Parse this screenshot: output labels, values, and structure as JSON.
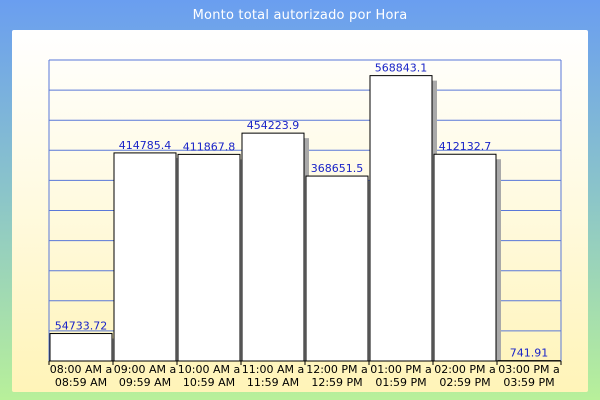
{
  "chart_data": {
    "type": "bar",
    "title": "Monto total autorizado por Hora",
    "categories": [
      [
        "08:00 AM a",
        "08:59 AM"
      ],
      [
        "09:00 AM a",
        "09:59 AM"
      ],
      [
        "10:00 AM a",
        "10:59 AM"
      ],
      [
        "11:00 AM a",
        "11:59 AM"
      ],
      [
        "12:00 PM a",
        "12:59 PM"
      ],
      [
        "01:00 PM a",
        "01:59 PM"
      ],
      [
        "02:00 PM a",
        "02:59 PM"
      ],
      [
        "03:00 PM a",
        "03:59 PM"
      ]
    ],
    "values": [
      54733.72,
      414785.4,
      411867.8,
      454223.9,
      368651.5,
      568843.1,
      412132.7,
      741.91
    ],
    "value_labels": [
      "54733.72",
      "414785.4",
      "411867.8",
      "454223.9",
      "368651.5",
      "568843.1",
      "412132.7",
      "741.91"
    ],
    "ylim": [
      0,
      600000
    ],
    "grid": true,
    "legend": "none",
    "colors": {
      "bar_fill": "#ffffff",
      "bar_stroke": "#000000",
      "bar_shadow": "#a9a9a9",
      "grid": "#5a78d8",
      "data_label": "#1a24c8",
      "frame_top": "#6a9ef0",
      "frame_bottom": "#b8f09a"
    }
  }
}
